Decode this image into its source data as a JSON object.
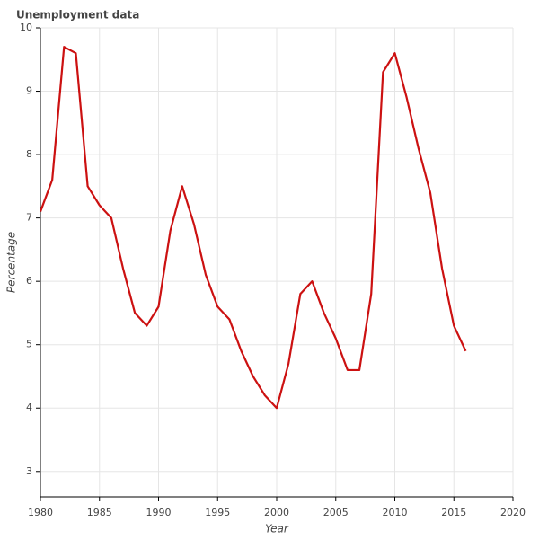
{
  "chart_data": {
    "type": "line",
    "title": "Unemployment data",
    "x_label": "Year",
    "y_label": "Percentage",
    "x": [
      1980,
      1981,
      1982,
      1983,
      1984,
      1985,
      1986,
      1987,
      1988,
      1989,
      1990,
      1991,
      1992,
      1993,
      1994,
      1995,
      1996,
      1997,
      1998,
      1999,
      2000,
      2001,
      2002,
      2003,
      2004,
      2005,
      2006,
      2007,
      2008,
      2009,
      2010,
      2011,
      2012,
      2013,
      2014,
      2015,
      2016
    ],
    "values": [
      7.1,
      7.6,
      9.7,
      9.6,
      7.5,
      7.2,
      7.0,
      6.2,
      5.5,
      5.3,
      5.6,
      6.8,
      7.5,
      6.9,
      6.1,
      5.6,
      5.4,
      4.9,
      4.5,
      4.2,
      4.0,
      4.7,
      5.8,
      6.0,
      5.5,
      5.1,
      4.6,
      4.6,
      5.8,
      9.3,
      9.6,
      8.9,
      8.1,
      7.4,
      6.2,
      5.3,
      4.9
    ],
    "color": "#cc1111",
    "xlim": [
      1980,
      2020
    ],
    "xticks": [
      1980,
      1985,
      1990,
      1995,
      2000,
      2005,
      2010,
      2015,
      2020
    ],
    "ylim": [
      2.6,
      10
    ],
    "yticks": [
      3,
      4,
      5,
      6,
      7,
      8,
      9,
      10
    ],
    "grid": true
  }
}
